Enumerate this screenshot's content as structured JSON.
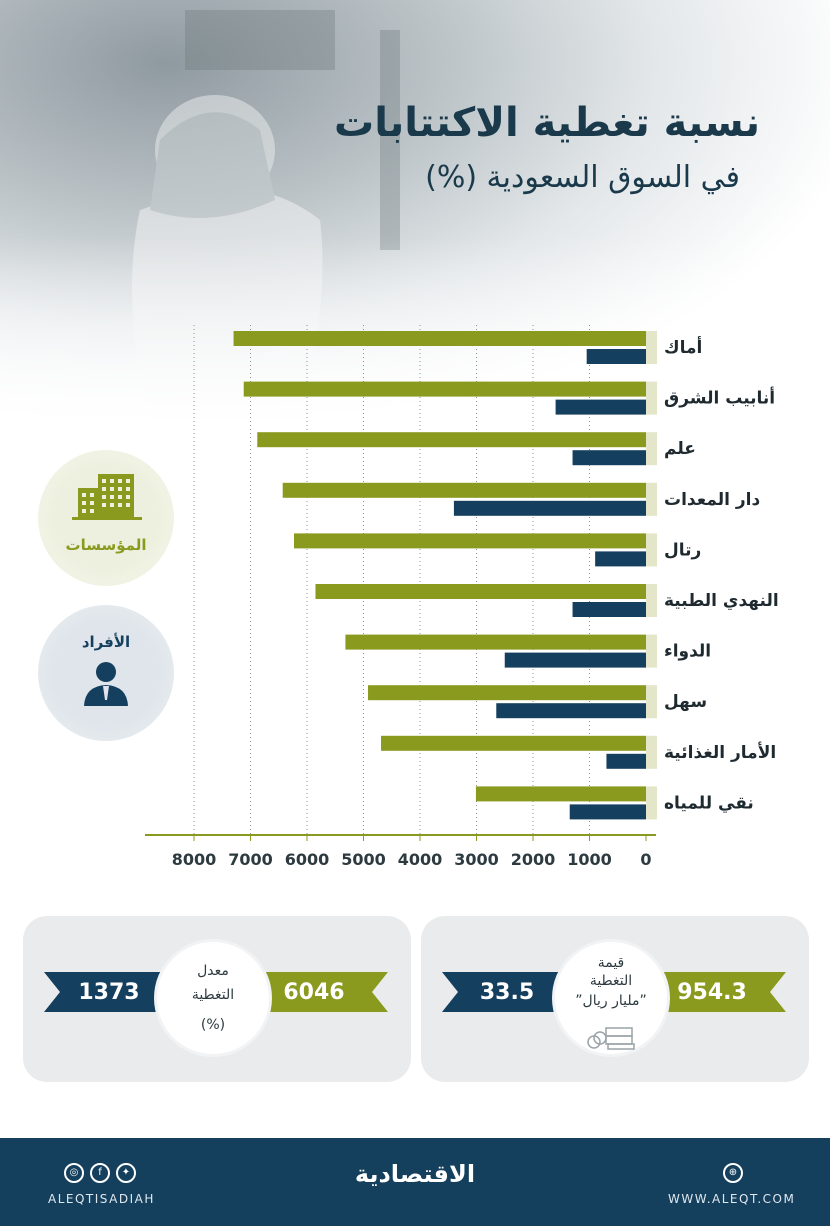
{
  "title": {
    "line1": "نسبة تغطية الاكتتابات",
    "line2": "في السوق السعودية (%)"
  },
  "legend": {
    "institutions": "المؤسسات",
    "individuals": "الأفراد"
  },
  "chart_data": {
    "type": "bar",
    "orientation": "horizontal",
    "categories": [
      "أماك",
      "أنابيب الشرق",
      "علم",
      "دار المعدات",
      "رتال",
      "النهدي الطبية",
      "الدواء",
      "سهل",
      "الأمار الغذائية",
      "نقي للمياه"
    ],
    "series": [
      {
        "name": "المؤسسات",
        "color": "#8a9a1e",
        "values": [
          7300,
          7120,
          6880,
          6430,
          6230,
          5850,
          5320,
          4920,
          4690,
          3010
        ]
      },
      {
        "name": "الأفراد",
        "color": "#153f5e",
        "values": [
          1050,
          1600,
          1300,
          3400,
          900,
          1300,
          2500,
          2650,
          700,
          1350
        ]
      }
    ],
    "x_ticks": [
      "0",
      "1000",
      "2000",
      "3000",
      "4000",
      "5000",
      "6000",
      "7000",
      "8000"
    ],
    "xlim": [
      0,
      8800
    ],
    "grid": "vertical dotted",
    "x_direction": "right-to-left"
  },
  "cards": {
    "rate": {
      "label_line1": "معدل",
      "label_line2": "التغطية",
      "label_line3": "(%)",
      "institutions_value": "6046",
      "individuals_value": "1373"
    },
    "value": {
      "label_line1": "قيمة",
      "label_line2": "التغطية",
      "label_line3": "”مليار ريال”",
      "institutions_value": "954.3",
      "individuals_value": "33.5"
    }
  },
  "footer": {
    "handle": "ALEQTISADIAH",
    "website": "WWW.ALEQT.COM",
    "logo": "الاقتصادية",
    "icons": [
      "instagram-icon",
      "facebook-icon",
      "twitter-icon",
      "globe-icon"
    ]
  }
}
